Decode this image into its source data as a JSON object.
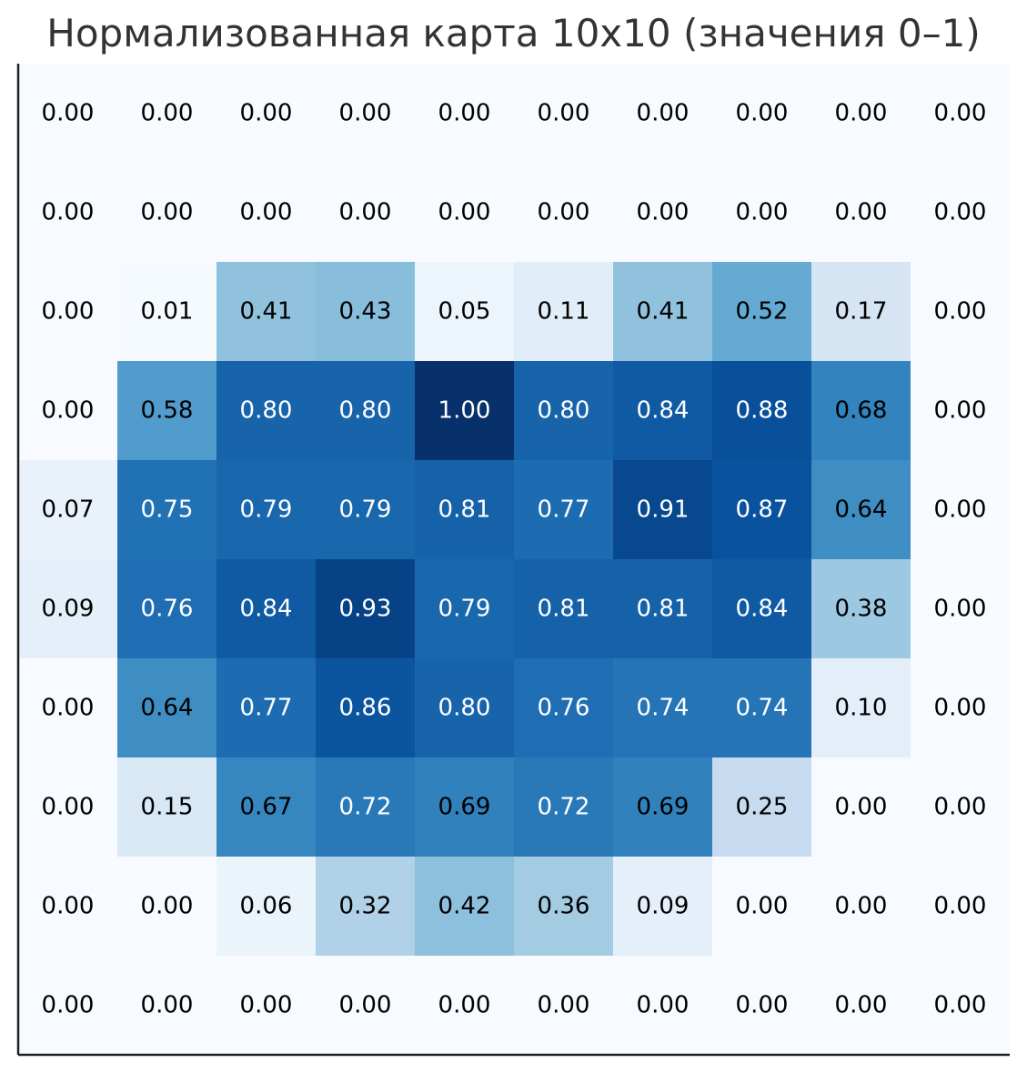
{
  "chart_data": {
    "type": "heatmap",
    "title": "Нормализованная карта 10x10 (значения 0–1)",
    "xlabel": "",
    "ylabel": "",
    "colormap": "Blues",
    "value_range": [
      0,
      1
    ],
    "value_format": "0.00",
    "label_color_threshold": 0.7,
    "colors": {
      "low": "#f7fbff",
      "high": "#08306b",
      "text_dark": "#000000",
      "text_light": "#ffffff",
      "axis": "#222222",
      "title": "#333333"
    },
    "rows": 10,
    "cols": 10,
    "values": [
      [
        0.0,
        0.0,
        0.0,
        0.0,
        0.0,
        0.0,
        0.0,
        0.0,
        0.0,
        0.0
      ],
      [
        0.0,
        0.0,
        0.0,
        0.0,
        0.0,
        0.0,
        0.0,
        0.0,
        0.0,
        0.0
      ],
      [
        0.0,
        0.01,
        0.41,
        0.43,
        0.05,
        0.11,
        0.41,
        0.52,
        0.17,
        0.0
      ],
      [
        0.0,
        0.58,
        0.8,
        0.8,
        1.0,
        0.8,
        0.84,
        0.88,
        0.68,
        0.0
      ],
      [
        0.07,
        0.75,
        0.79,
        0.79,
        0.81,
        0.77,
        0.91,
        0.87,
        0.64,
        0.0
      ],
      [
        0.09,
        0.76,
        0.84,
        0.93,
        0.79,
        0.81,
        0.81,
        0.84,
        0.38,
        0.0
      ],
      [
        0.0,
        0.64,
        0.77,
        0.86,
        0.8,
        0.76,
        0.74,
        0.74,
        0.1,
        0.0
      ],
      [
        0.0,
        0.15,
        0.67,
        0.72,
        0.69,
        0.72,
        0.69,
        0.25,
        0.0,
        0.0
      ],
      [
        0.0,
        0.0,
        0.06,
        0.32,
        0.42,
        0.36,
        0.09,
        0.0,
        0.0,
        0.0
      ],
      [
        0.0,
        0.0,
        0.0,
        0.0,
        0.0,
        0.0,
        0.0,
        0.0,
        0.0,
        0.0
      ]
    ]
  }
}
